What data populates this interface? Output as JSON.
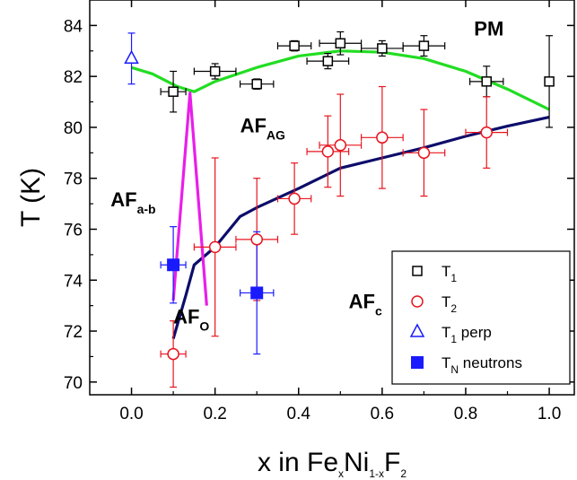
{
  "chart_data": {
    "type": "scatter",
    "title": "",
    "xlabel": {
      "parts": [
        "x in Fe",
        "x",
        "Ni",
        "1-x",
        "F",
        "2"
      ]
    },
    "ylabel": "T (K)",
    "xlim": [
      -0.1,
      1.06
    ],
    "ylim": [
      69.5,
      85.0
    ],
    "xticks": [
      0.0,
      0.2,
      0.4,
      0.6,
      0.8,
      1.0
    ],
    "xtick_labels": [
      "0.0",
      "0.2",
      "0.4",
      "0.6",
      "0.8",
      "1.0"
    ],
    "yticks": [
      70,
      72,
      74,
      76,
      78,
      80,
      82,
      84
    ],
    "ytick_labels": [
      "70",
      "72",
      "74",
      "76",
      "78",
      "80",
      "82",
      "84"
    ],
    "grid": false,
    "legend_position": "bottom-right",
    "series": [
      {
        "name": "T1",
        "label_main": "T",
        "label_sub": "1",
        "label_rest": "",
        "marker": "square-open",
        "color": "#000000",
        "points": [
          {
            "x": 0.1,
            "y": 81.4,
            "xerr": 0.03,
            "yerr": 0.8
          },
          {
            "x": 0.2,
            "y": 82.2,
            "xerr": 0.05,
            "yerr": 0.3
          },
          {
            "x": 0.3,
            "y": 81.7,
            "xerr": 0.04,
            "yerr": 0.2
          },
          {
            "x": 0.39,
            "y": 83.2,
            "xerr": 0.04,
            "yerr": 0.2
          },
          {
            "x": 0.47,
            "y": 82.6,
            "xerr": 0.05,
            "yerr": 0.3
          },
          {
            "x": 0.5,
            "y": 83.3,
            "xerr": 0.05,
            "yerr": 0.45
          },
          {
            "x": 0.6,
            "y": 83.1,
            "xerr": 0.05,
            "yerr": 0.3
          },
          {
            "x": 0.7,
            "y": 83.2,
            "xerr": 0.05,
            "yerr": 0.4
          },
          {
            "x": 0.85,
            "y": 81.8,
            "xerr": 0.04,
            "yerr": 0.6
          },
          {
            "x": 1.0,
            "y": 81.8,
            "xerr": 0.0,
            "yerr": 1.8
          }
        ]
      },
      {
        "name": "T2",
        "label_main": "T",
        "label_sub": "2",
        "label_rest": "",
        "marker": "circle-open",
        "color": "#e8141e",
        "points": [
          {
            "x": 0.1,
            "y": 71.1,
            "xerr": 0.03,
            "yerr": 1.3
          },
          {
            "x": 0.2,
            "y": 75.3,
            "xerr": 0.05,
            "yerr": 3.5
          },
          {
            "x": 0.3,
            "y": 75.6,
            "xerr": 0.05,
            "yerr": 2.4
          },
          {
            "x": 0.39,
            "y": 77.2,
            "xerr": 0.04,
            "yerr": 1.4
          },
          {
            "x": 0.47,
            "y": 79.05,
            "xerr": 0.05,
            "yerr": 1.4
          },
          {
            "x": 0.5,
            "y": 79.3,
            "xerr": 0.05,
            "yerr": 2.0
          },
          {
            "x": 0.6,
            "y": 79.6,
            "xerr": 0.05,
            "yerr": 2.0
          },
          {
            "x": 0.7,
            "y": 79.0,
            "xerr": 0.05,
            "yerr": 1.7
          },
          {
            "x": 0.85,
            "y": 79.8,
            "xerr": 0.05,
            "yerr": 1.4
          }
        ]
      },
      {
        "name": "T1 perp",
        "label_main": "T",
        "label_sub": "1",
        "label_rest": " perp",
        "marker": "triangle-open",
        "color": "#1a1aff",
        "points": [
          {
            "x": 0.0,
            "y": 82.7,
            "xerr": 0.0,
            "yerr": 1.0
          }
        ]
      },
      {
        "name": "TN neutrons",
        "label_main": "T",
        "label_sub": "N",
        "label_rest": " neutrons",
        "marker": "square-filled",
        "color": "#1a1aff",
        "points": [
          {
            "x": 0.1,
            "y": 74.6,
            "xerr": 0.03,
            "yerr": 1.5
          },
          {
            "x": 0.3,
            "y": 73.5,
            "xerr": 0.04,
            "yerr": 2.4
          }
        ]
      }
    ],
    "curves": [
      {
        "color": "#22dd22",
        "points": [
          [
            0.0,
            82.35
          ],
          [
            0.05,
            82.1
          ],
          [
            0.11,
            81.6
          ],
          [
            0.15,
            81.4
          ],
          [
            0.2,
            81.8
          ],
          [
            0.3,
            82.35
          ],
          [
            0.4,
            82.8
          ],
          [
            0.5,
            83.0
          ],
          [
            0.6,
            82.95
          ],
          [
            0.7,
            82.7
          ],
          [
            0.8,
            82.2
          ],
          [
            0.9,
            81.5
          ],
          [
            1.0,
            80.7
          ]
        ]
      },
      {
        "color": "#0d0d6b",
        "points": [
          [
            0.1,
            71.7
          ],
          [
            0.13,
            73.4
          ],
          [
            0.15,
            74.6
          ],
          [
            0.2,
            75.3
          ],
          [
            0.26,
            76.5
          ],
          [
            0.3,
            76.85
          ],
          [
            0.4,
            77.6
          ],
          [
            0.5,
            78.4
          ],
          [
            0.6,
            78.8
          ],
          [
            0.7,
            79.2
          ],
          [
            0.8,
            79.65
          ],
          [
            0.9,
            80.05
          ],
          [
            1.0,
            80.4
          ]
        ]
      },
      {
        "color": "#e91ee9",
        "points": [
          [
            0.1,
            73.2
          ],
          [
            0.14,
            81.35
          ],
          [
            0.18,
            73.0
          ]
        ]
      }
    ],
    "annotations": [
      {
        "main": "PM",
        "sub": "",
        "x": 0.82,
        "y": 83.6
      },
      {
        "main": "AF",
        "sub": "AG",
        "x": 0.26,
        "y": 79.8
      },
      {
        "main": "AF",
        "sub": "a-b",
        "x": -0.05,
        "y": 76.9
      },
      {
        "main": "AF",
        "sub": "O",
        "x": 0.1,
        "y": 72.3
      },
      {
        "main": "AF",
        "sub": "c",
        "x": 0.52,
        "y": 72.9
      }
    ]
  }
}
